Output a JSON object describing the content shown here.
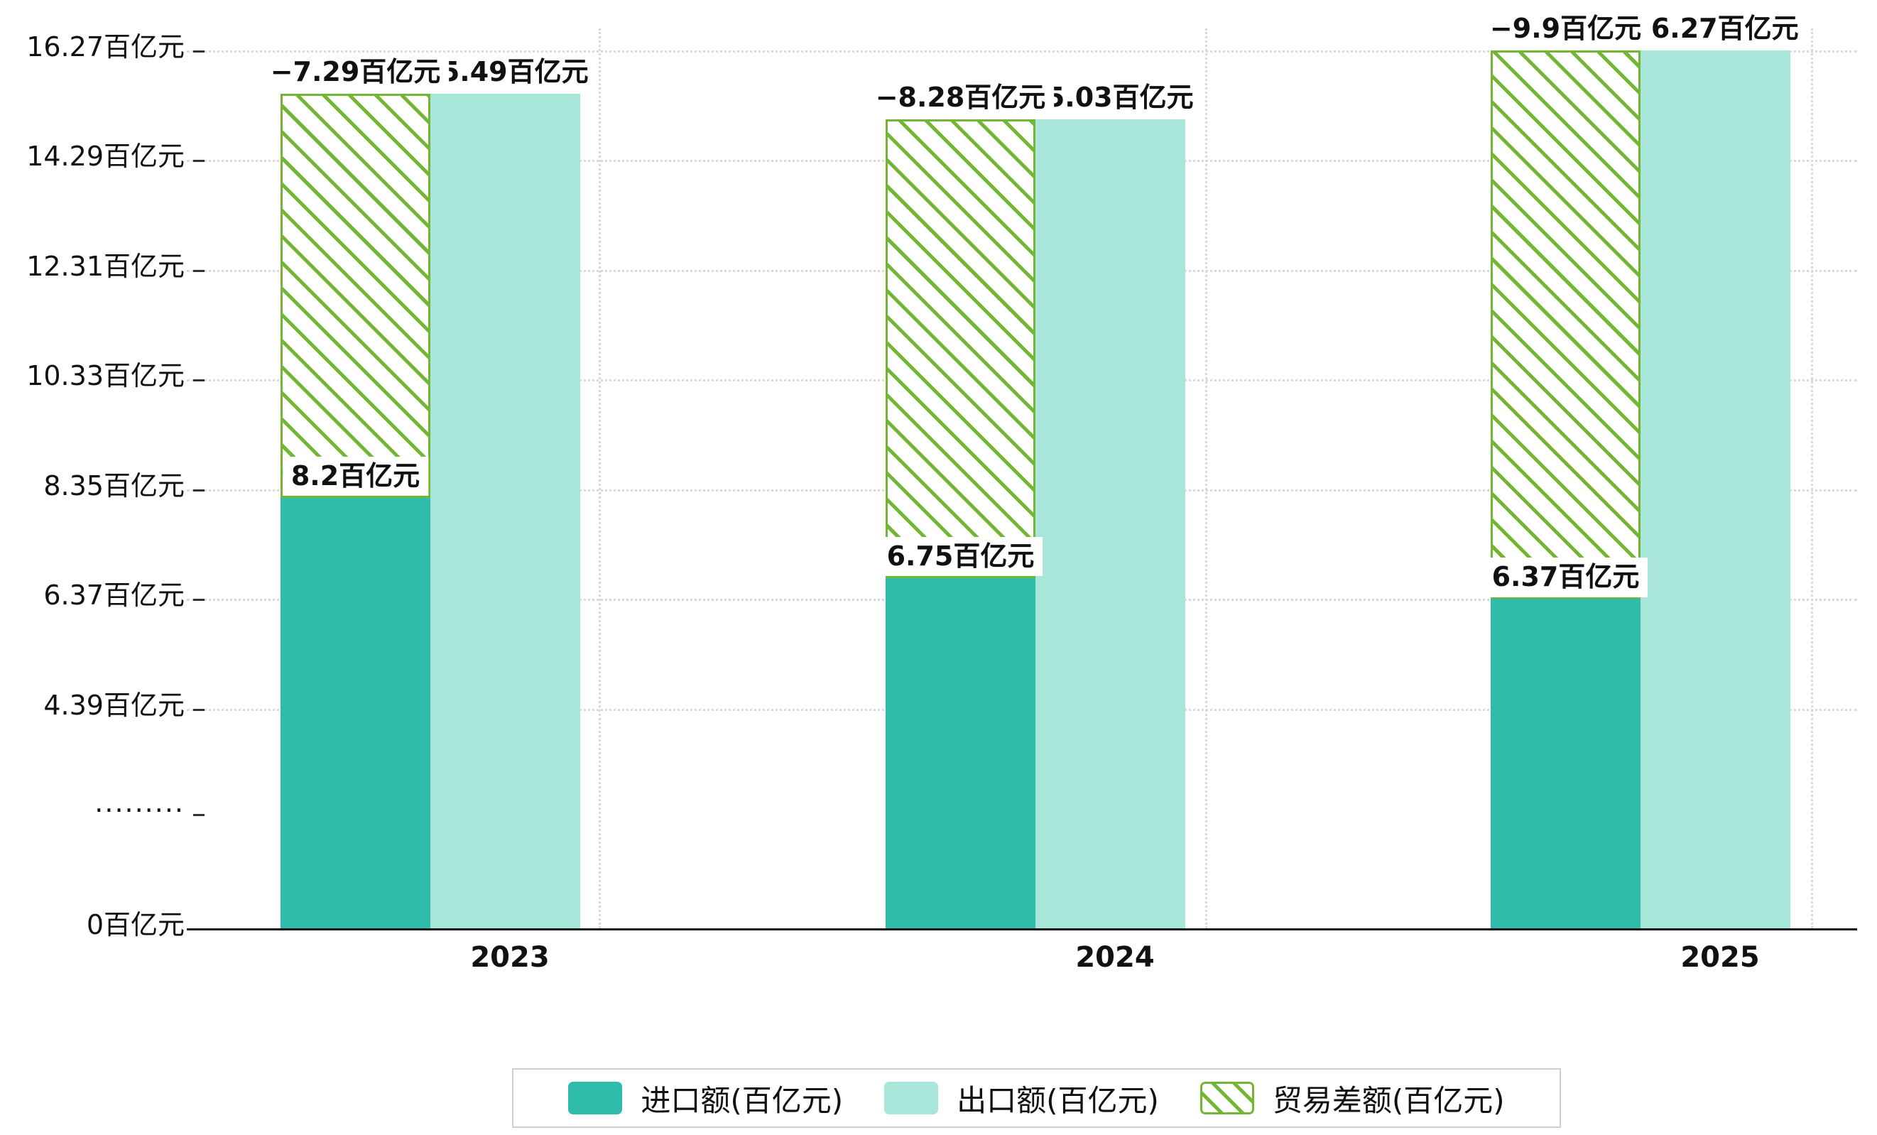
{
  "chart_data": {
    "type": "bar",
    "title": "",
    "unit": "百亿元",
    "categories": [
      "2023",
      "2024",
      "2025"
    ],
    "series": [
      {
        "name": "进口额(百亿元)",
        "type": "bar",
        "color": "#2fbcaa",
        "values": [
          8.2,
          6.75,
          6.37
        ],
        "labels": [
          "8.2百亿元",
          "6.75百亿元",
          "6.37百亿元"
        ]
      },
      {
        "name": "出口额(百亿元)",
        "type": "bar",
        "color": "#a8e6d9",
        "values": [
          15.49,
          15.03,
          16.27
        ],
        "labels": [
          "15.49百亿元",
          "15.03百亿元",
          "16.27百亿元"
        ]
      },
      {
        "name": "贸易差额(百亿元)",
        "type": "floating-bar",
        "pattern": "green-diagonal-hatch",
        "color": "#72b633",
        "values": [
          -7.29,
          -8.28,
          -9.9
        ],
        "labels": [
          "−7.29百亿元",
          "−8.28百亿元",
          "−9.9百亿元"
        ],
        "from": [
          8.2,
          6.75,
          6.37
        ],
        "to": [
          15.49,
          15.03,
          16.27
        ]
      }
    ],
    "x_axis": {
      "labels": [
        "2023",
        "2024",
        "2025"
      ]
    },
    "y_axis": {
      "unit": "百亿元",
      "axis_break_between": [
        0,
        4.39
      ],
      "ylim": [
        0,
        16.27
      ],
      "ticks": [
        {
          "label": "16.27百亿元",
          "value": 16.27
        },
        {
          "label": "14.29百亿元",
          "value": 14.29
        },
        {
          "label": "12.31百亿元",
          "value": 12.31
        },
        {
          "label": "10.33百亿元",
          "value": 10.33
        },
        {
          "label": "8.35百亿元",
          "value": 8.35
        },
        {
          "label": "6.37百亿元",
          "value": 6.37
        },
        {
          "label": "4.39百亿元",
          "value": 4.39
        },
        {
          "label": "·········",
          "value": null,
          "axis_break": true
        },
        {
          "label": "0百亿元",
          "value": 0
        }
      ]
    },
    "grid": true,
    "legend_position": "bottom",
    "legend": [
      {
        "label": "进口额(百亿元)",
        "swatch": "solid-teal"
      },
      {
        "label": "出口额(百亿元)",
        "swatch": "solid-light-teal"
      },
      {
        "label": "贸易差额(百亿元)",
        "swatch": "green-hatched"
      }
    ],
    "colors": {
      "import_bar": "#2fbcaa",
      "export_bar": "#a8e6d9",
      "trade_balance_hatch": "#72b633",
      "gridline": "#d9d9d9",
      "axis": "#111111",
      "label_background": "#ffffff"
    }
  }
}
